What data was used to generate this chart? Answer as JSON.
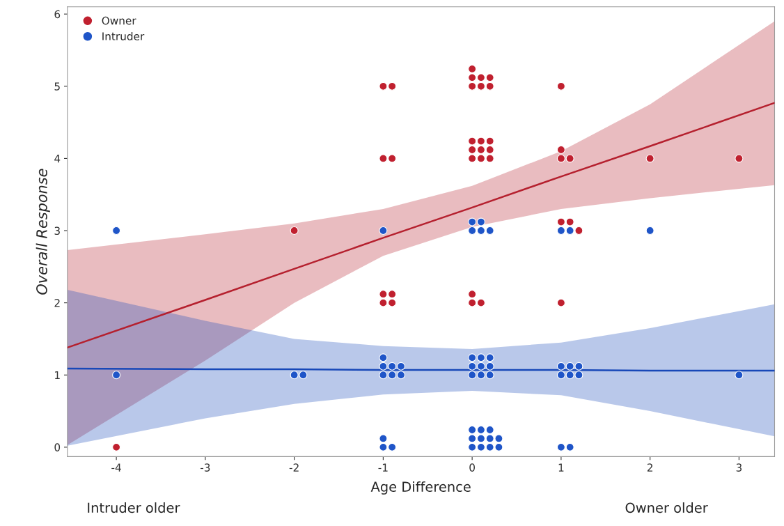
{
  "chart_data": {
    "type": "scatter",
    "xlabel": "Age Difference",
    "ylabel": "Overall Response",
    "xlim": [
      -4.55,
      3.4
    ],
    "xticks": [
      -4,
      -3,
      -2,
      -1,
      0,
      1,
      2,
      3
    ],
    "ylim": [
      -0.13,
      6.1
    ],
    "yticks": [
      0,
      1,
      2,
      3,
      4,
      5,
      6
    ],
    "grid": false,
    "legend": "top left",
    "marker": "circle",
    "annotations": [
      "Intruder older",
      "Owner older"
    ],
    "series": [
      {
        "type": "line",
        "marker": "none",
        "color": "#b5202e",
        "x": [
          -4.55,
          -3,
          -2,
          -1,
          0,
          1,
          2,
          3.4
        ],
        "values": [
          1.38,
          2.04,
          2.47,
          2.9,
          3.32,
          3.75,
          4.17,
          4.77
        ],
        "lower": [
          0.03,
          1.2,
          2.0,
          2.65,
          3.05,
          3.3,
          3.45,
          3.63
        ],
        "upper": [
          2.73,
          2.95,
          3.1,
          3.3,
          3.62,
          4.1,
          4.75,
          5.9
        ]
      },
      {
        "type": "line",
        "marker": "none",
        "color": "#1848b8",
        "x": [
          -4.55,
          -3,
          -2,
          -1,
          0,
          1,
          2,
          3.4
        ],
        "values": [
          1.09,
          1.08,
          1.08,
          1.07,
          1.07,
          1.07,
          1.06,
          1.06
        ],
        "lower": [
          0.02,
          0.4,
          0.6,
          0.73,
          0.78,
          0.72,
          0.5,
          0.15
        ],
        "upper": [
          2.18,
          1.75,
          1.5,
          1.4,
          1.36,
          1.45,
          1.65,
          1.98
        ]
      },
      {
        "name": "Owner",
        "color": "#c0202f",
        "x": [
          -4,
          -2,
          -1,
          -0.9,
          -1,
          -0.9,
          -1,
          -0.9,
          -1,
          -0.9,
          0,
          0,
          0.1,
          0.2,
          0,
          0.1,
          0.2,
          0,
          0.1,
          0.2,
          0,
          0.1,
          0.2,
          0,
          0.1,
          0.2,
          0,
          0,
          0.1,
          1,
          1,
          1,
          1.1,
          1,
          1.1,
          1.2,
          1,
          2,
          3
        ],
        "values": [
          0,
          3,
          5,
          5,
          4,
          4,
          2.12,
          2.12,
          2,
          2,
          5.24,
          5.12,
          5.12,
          5.12,
          5,
          5,
          5,
          4.24,
          4.24,
          4.24,
          4.12,
          4.12,
          4.12,
          4,
          4,
          4,
          2.12,
          2,
          2,
          5,
          4.12,
          4,
          4,
          3.12,
          3.12,
          3,
          2,
          4,
          4
        ]
      },
      {
        "name": "Intruder",
        "color": "#1f55c8",
        "x": [
          -4,
          -4,
          -2,
          -1.9,
          -1,
          -1,
          -1,
          -0.9,
          -0.8,
          -1,
          -0.9,
          -0.8,
          0,
          0.1,
          0.2,
          0,
          0.1,
          0.2,
          0,
          0.1,
          0.2,
          1,
          1.1,
          1.2,
          1,
          1.1,
          1.2,
          3,
          -1,
          -1,
          -0.9,
          0,
          0.1,
          0.2,
          0,
          0.1,
          0.2,
          0.3,
          0,
          0.1,
          0.2,
          0.3,
          1,
          1.1,
          0,
          0.1,
          0,
          0.1,
          0.2,
          1,
          1.1,
          2
        ],
        "values": [
          3,
          1,
          1,
          1,
          3,
          1.24,
          1.12,
          1.12,
          1.12,
          1,
          1,
          1,
          1.24,
          1.24,
          1.24,
          1.12,
          1.12,
          1.12,
          1,
          1,
          1,
          1.12,
          1.12,
          1.12,
          1,
          1,
          1,
          1,
          0.12,
          0,
          0,
          0.24,
          0.24,
          0.24,
          0.12,
          0.12,
          0.12,
          0.12,
          0,
          0,
          0,
          0,
          0,
          0,
          3.12,
          3.12,
          3,
          3,
          3,
          3,
          3,
          3
        ]
      }
    ]
  }
}
